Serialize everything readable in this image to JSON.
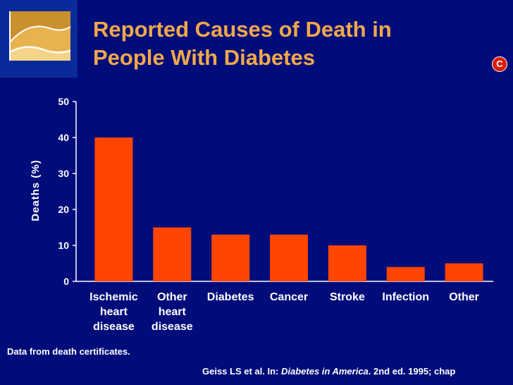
{
  "slide": {
    "title_line1": "Reported Causes of Death in",
    "title_line2": "People With Diabetes",
    "badge_letter": "C",
    "note": "Data from death certificates.",
    "citation_prefix": "Geiss LS et al. In: ",
    "citation_book": "Diabetes in America",
    "citation_suffix": ". 2nd ed. 1995; chap",
    "colors": {
      "background": "#000c7a",
      "title": "#f0a84a",
      "bar": "#ff4500",
      "badge": "#d81e05"
    },
    "logo_icon": "curve-logo-icon"
  },
  "chart_data": {
    "type": "bar",
    "title": "Reported Causes of Death in People With Diabetes",
    "xlabel": "",
    "ylabel": "Deaths (%)",
    "ylim": [
      0,
      50
    ],
    "yticks": [
      0,
      10,
      20,
      30,
      40,
      50
    ],
    "grid": false,
    "categories": [
      [
        "Ischemic",
        "heart",
        "disease"
      ],
      [
        "Other",
        "heart",
        "disease"
      ],
      [
        "Diabetes"
      ],
      [
        "Cancer"
      ],
      [
        "Stroke"
      ],
      [
        "Infection"
      ],
      [
        "Other"
      ]
    ],
    "values": [
      40,
      15,
      13,
      13,
      10,
      4,
      5
    ]
  }
}
